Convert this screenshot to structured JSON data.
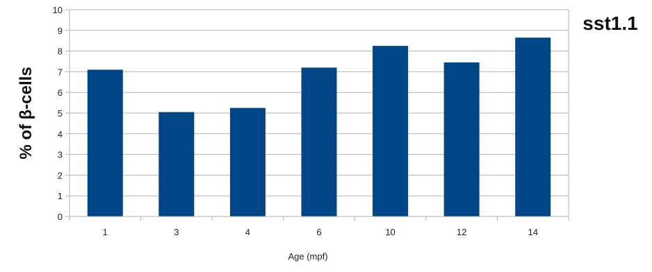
{
  "chart_data": {
    "type": "bar",
    "title": "sst1.1",
    "xlabel": "Age (mpf)",
    "ylabel": "% of β-cells",
    "categories": [
      "1",
      "3",
      "4",
      "6",
      "10",
      "12",
      "14"
    ],
    "values": [
      7.1,
      5.05,
      5.25,
      7.2,
      8.25,
      7.45,
      8.65
    ],
    "ylim": [
      0,
      10
    ],
    "yticks": [
      0,
      1,
      2,
      3,
      4,
      5,
      6,
      7,
      8,
      9,
      10
    ],
    "grid": true,
    "legend": "none",
    "bar_color": "#004586",
    "grid_color": "#b3b3b3"
  }
}
